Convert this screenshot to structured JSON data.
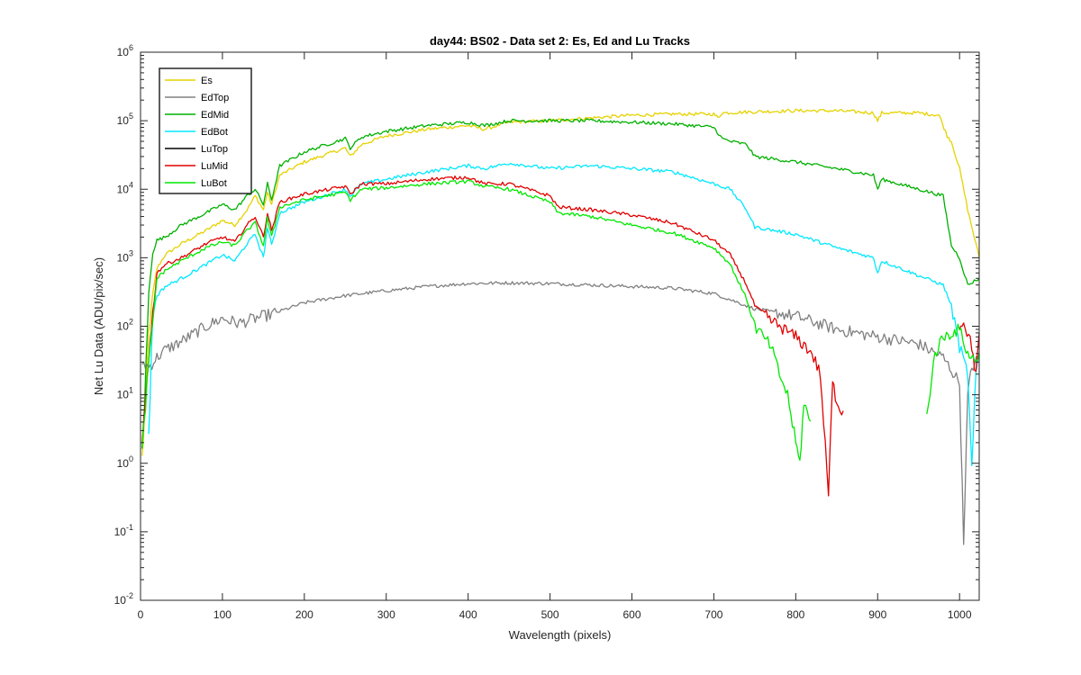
{
  "chart_data": {
    "type": "line",
    "title": "day44: BS02 - Data set 2: Es, Ed and Lu Tracks",
    "xlabel": "Wavelength (pixels)",
    "ylabel": "Net Lu Data (ADU/pix/sec)",
    "xlim": [
      0,
      1024
    ],
    "ylim": [
      0.01,
      1000000
    ],
    "yscale": "log",
    "grid": false,
    "legend_position": "top-left",
    "x_ticks": [
      0,
      100,
      200,
      300,
      400,
      500,
      600,
      700,
      800,
      900,
      1000
    ],
    "y_ticks": [
      {
        "value": 0.01,
        "base": "10",
        "exp": "-2"
      },
      {
        "value": 0.1,
        "base": "10",
        "exp": "-1"
      },
      {
        "value": 1,
        "base": "10",
        "exp": "0"
      },
      {
        "value": 10,
        "base": "10",
        "exp": "1"
      },
      {
        "value": 100,
        "base": "10",
        "exp": "2"
      },
      {
        "value": 1000,
        "base": "10",
        "exp": "3"
      },
      {
        "value": 10000,
        "base": "10",
        "exp": "4"
      },
      {
        "value": 100000,
        "base": "10",
        "exp": "5"
      },
      {
        "value": 1000000,
        "base": "10",
        "exp": "6"
      }
    ],
    "series": [
      {
        "name": "Es",
        "color": "#e6d200",
        "points": [
          [
            2,
            1.2
          ],
          [
            5,
            5
          ],
          [
            10,
            80
          ],
          [
            15,
            300
          ],
          [
            20,
            700
          ],
          [
            30,
            1100
          ],
          [
            50,
            1600
          ],
          [
            80,
            2500
          ],
          [
            100,
            3500
          ],
          [
            115,
            3000
          ],
          [
            130,
            5000
          ],
          [
            140,
            8000
          ],
          [
            150,
            5000
          ],
          [
            155,
            9000
          ],
          [
            160,
            6000
          ],
          [
            170,
            16000
          ],
          [
            200,
            25000
          ],
          [
            250,
            40000
          ],
          [
            256,
            30000
          ],
          [
            270,
            45000
          ],
          [
            300,
            60000
          ],
          [
            350,
            75000
          ],
          [
            400,
            85000
          ],
          [
            420,
            75000
          ],
          [
            450,
            95000
          ],
          [
            500,
            100000
          ],
          [
            550,
            110000
          ],
          [
            600,
            120000
          ],
          [
            650,
            125000
          ],
          [
            700,
            125000
          ],
          [
            705,
            110000
          ],
          [
            710,
            130000
          ],
          [
            750,
            135000
          ],
          [
            800,
            140000
          ],
          [
            850,
            140000
          ],
          [
            895,
            130000
          ],
          [
            900,
            100000
          ],
          [
            905,
            130000
          ],
          [
            950,
            130000
          ],
          [
            975,
            120000
          ],
          [
            985,
            60000
          ],
          [
            990,
            50000
          ],
          [
            1000,
            20000
          ],
          [
            1010,
            5000
          ],
          [
            1024,
            1000
          ]
        ]
      },
      {
        "name": "EdTop",
        "color": "#808080",
        "points": [
          [
            2,
            30
          ],
          [
            10,
            25
          ],
          [
            20,
            35
          ],
          [
            30,
            45
          ],
          [
            50,
            60
          ],
          [
            80,
            100
          ],
          [
            100,
            130
          ],
          [
            120,
            110
          ],
          [
            140,
            130
          ],
          [
            160,
            150
          ],
          [
            200,
            220
          ],
          [
            250,
            280
          ],
          [
            300,
            330
          ],
          [
            350,
            380
          ],
          [
            400,
            420
          ],
          [
            450,
            430
          ],
          [
            500,
            420
          ],
          [
            550,
            400
          ],
          [
            600,
            380
          ],
          [
            650,
            360
          ],
          [
            700,
            300
          ],
          [
            750,
            180
          ],
          [
            800,
            140
          ],
          [
            850,
            90
          ],
          [
            900,
            70
          ],
          [
            950,
            55
          ],
          [
            980,
            35
          ],
          [
            1000,
            15
          ],
          [
            1005,
            0.07
          ],
          [
            1010,
            10
          ],
          [
            1015,
            25
          ],
          [
            1024,
            35
          ]
        ]
      },
      {
        "name": "EdMid",
        "color": "#00b000",
        "points": [
          [
            2,
            1.5
          ],
          [
            5,
            8
          ],
          [
            10,
            300
          ],
          [
            15,
            1200
          ],
          [
            20,
            1800
          ],
          [
            30,
            2000
          ],
          [
            50,
            3000
          ],
          [
            80,
            4500
          ],
          [
            100,
            6000
          ],
          [
            115,
            5000
          ],
          [
            130,
            8000
          ],
          [
            140,
            10000
          ],
          [
            150,
            6000
          ],
          [
            155,
            12000
          ],
          [
            160,
            7000
          ],
          [
            170,
            22000
          ],
          [
            200,
            35000
          ],
          [
            250,
            55000
          ],
          [
            256,
            40000
          ],
          [
            270,
            58000
          ],
          [
            300,
            70000
          ],
          [
            350,
            85000
          ],
          [
            400,
            95000
          ],
          [
            420,
            85000
          ],
          [
            450,
            100000
          ],
          [
            500,
            100000
          ],
          [
            550,
            100000
          ],
          [
            600,
            95000
          ],
          [
            650,
            90000
          ],
          [
            700,
            80000
          ],
          [
            710,
            55000
          ],
          [
            720,
            50000
          ],
          [
            740,
            45000
          ],
          [
            750,
            30000
          ],
          [
            800,
            25000
          ],
          [
            850,
            20000
          ],
          [
            895,
            16000
          ],
          [
            900,
            10000
          ],
          [
            905,
            14000
          ],
          [
            950,
            10000
          ],
          [
            980,
            8000
          ],
          [
            990,
            1500
          ],
          [
            1000,
            1000
          ],
          [
            1010,
            400
          ],
          [
            1024,
            500
          ]
        ]
      },
      {
        "name": "EdBot",
        "color": "#00e8ff",
        "points": [
          [
            10,
            2.5
          ],
          [
            15,
            150
          ],
          [
            20,
            280
          ],
          [
            30,
            380
          ],
          [
            50,
            500
          ],
          [
            80,
            800
          ],
          [
            100,
            1100
          ],
          [
            115,
            900
          ],
          [
            130,
            1600
          ],
          [
            140,
            2200
          ],
          [
            150,
            1000
          ],
          [
            155,
            2800
          ],
          [
            160,
            1500
          ],
          [
            170,
            4500
          ],
          [
            200,
            6500
          ],
          [
            250,
            10000
          ],
          [
            256,
            8000
          ],
          [
            270,
            12000
          ],
          [
            300,
            14000
          ],
          [
            350,
            18000
          ],
          [
            400,
            22000
          ],
          [
            420,
            20000
          ],
          [
            450,
            24000
          ],
          [
            500,
            20000
          ],
          [
            550,
            22000
          ],
          [
            600,
            20000
          ],
          [
            650,
            18000
          ],
          [
            700,
            12000
          ],
          [
            720,
            10000
          ],
          [
            740,
            5000
          ],
          [
            750,
            2800
          ],
          [
            800,
            2200
          ],
          [
            850,
            1400
          ],
          [
            895,
            1000
          ],
          [
            900,
            600
          ],
          [
            905,
            900
          ],
          [
            950,
            550
          ],
          [
            980,
            400
          ],
          [
            990,
            200
          ],
          [
            1000,
            50
          ],
          [
            1010,
            20
          ],
          [
            1015,
            0.8
          ],
          [
            1020,
            20
          ],
          [
            1024,
            40
          ]
        ]
      },
      {
        "name": "LuTop",
        "color": "#000000",
        "points": []
      },
      {
        "name": "LuMid",
        "color": "#e00000",
        "points": [
          [
            2,
            2
          ],
          [
            8,
            20
          ],
          [
            15,
            150
          ],
          [
            20,
            600
          ],
          [
            30,
            800
          ],
          [
            50,
            1000
          ],
          [
            80,
            1600
          ],
          [
            100,
            2000
          ],
          [
            115,
            1700
          ],
          [
            130,
            3000
          ],
          [
            140,
            4000
          ],
          [
            150,
            2000
          ],
          [
            155,
            4500
          ],
          [
            160,
            2500
          ],
          [
            170,
            6500
          ],
          [
            200,
            8500
          ],
          [
            250,
            11000
          ],
          [
            256,
            8500
          ],
          [
            270,
            12000
          ],
          [
            300,
            12000
          ],
          [
            350,
            14000
          ],
          [
            400,
            15000
          ],
          [
            420,
            12000
          ],
          [
            450,
            12000
          ],
          [
            500,
            8000
          ],
          [
            510,
            5500
          ],
          [
            550,
            5000
          ],
          [
            600,
            4200
          ],
          [
            650,
            3200
          ],
          [
            700,
            1800
          ],
          [
            720,
            1100
          ],
          [
            740,
            400
          ],
          [
            750,
            200
          ],
          [
            770,
            120
          ],
          [
            800,
            70
          ],
          [
            820,
            40
          ],
          [
            830,
            20
          ],
          [
            840,
            0.35
          ],
          [
            845,
            15
          ],
          [
            850,
            8
          ],
          [
            860,
            5
          ],
          [
            870,
            null
          ],
          [
            990,
            null
          ],
          [
            1000,
            100
          ],
          [
            1005,
            120
          ],
          [
            1015,
            50
          ],
          [
            1020,
            20
          ],
          [
            1024,
            80
          ]
        ]
      },
      {
        "name": "LuBot",
        "color": "#00e800",
        "points": [
          [
            2,
            1.5
          ],
          [
            8,
            15
          ],
          [
            15,
            120
          ],
          [
            20,
            500
          ],
          [
            30,
            650
          ],
          [
            50,
            900
          ],
          [
            80,
            1400
          ],
          [
            100,
            1700
          ],
          [
            115,
            1500
          ],
          [
            130,
            2500
          ],
          [
            140,
            3200
          ],
          [
            150,
            1500
          ],
          [
            155,
            3800
          ],
          [
            160,
            2000
          ],
          [
            170,
            5500
          ],
          [
            200,
            7000
          ],
          [
            250,
            9000
          ],
          [
            256,
            7000
          ],
          [
            270,
            10000
          ],
          [
            300,
            10500
          ],
          [
            350,
            12000
          ],
          [
            400,
            13000
          ],
          [
            420,
            11000
          ],
          [
            450,
            10000
          ],
          [
            500,
            6500
          ],
          [
            510,
            4500
          ],
          [
            550,
            4000
          ],
          [
            600,
            3000
          ],
          [
            650,
            2300
          ],
          [
            700,
            1400
          ],
          [
            720,
            800
          ],
          [
            740,
            250
          ],
          [
            750,
            100
          ],
          [
            770,
            50
          ],
          [
            780,
            20
          ],
          [
            790,
            10
          ],
          [
            800,
            2
          ],
          [
            805,
            1
          ],
          [
            810,
            8
          ],
          [
            820,
            3
          ],
          [
            830,
            null
          ],
          [
            955,
            null
          ],
          [
            960,
            5
          ],
          [
            970,
            40
          ],
          [
            980,
            70
          ],
          [
            1000,
            90
          ],
          [
            1010,
            40
          ],
          [
            1020,
            30
          ],
          [
            1024,
            40
          ]
        ]
      }
    ]
  }
}
